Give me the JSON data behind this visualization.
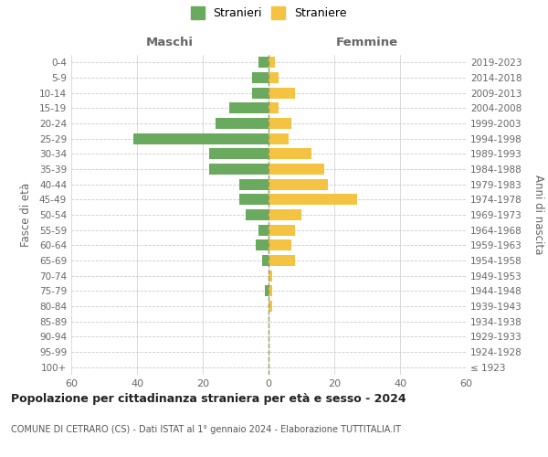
{
  "age_groups": [
    "100+",
    "95-99",
    "90-94",
    "85-89",
    "80-84",
    "75-79",
    "70-74",
    "65-69",
    "60-64",
    "55-59",
    "50-54",
    "45-49",
    "40-44",
    "35-39",
    "30-34",
    "25-29",
    "20-24",
    "15-19",
    "10-14",
    "5-9",
    "0-4"
  ],
  "birth_years": [
    "≤ 1923",
    "1924-1928",
    "1929-1933",
    "1934-1938",
    "1939-1943",
    "1944-1948",
    "1949-1953",
    "1954-1958",
    "1959-1963",
    "1964-1968",
    "1969-1973",
    "1974-1978",
    "1979-1983",
    "1984-1988",
    "1989-1993",
    "1994-1998",
    "1999-2003",
    "2004-2008",
    "2009-2013",
    "2014-2018",
    "2019-2023"
  ],
  "maschi": [
    0,
    0,
    0,
    0,
    0,
    1,
    0,
    2,
    4,
    3,
    7,
    9,
    9,
    18,
    18,
    41,
    16,
    12,
    5,
    5,
    3
  ],
  "femmine": [
    0,
    0,
    0,
    0,
    1,
    1,
    1,
    8,
    7,
    8,
    10,
    27,
    18,
    17,
    13,
    6,
    7,
    3,
    8,
    3,
    2
  ],
  "maschi_color": "#6aaa5e",
  "femmine_color": "#f5c342",
  "dashed_line_color": "#999966",
  "grid_color": "#cccccc",
  "bg_color": "#ffffff",
  "title": "Popolazione per cittadinanza straniera per età e sesso - 2024",
  "subtitle": "COMUNE DI CETRARO (CS) - Dati ISTAT al 1° gennaio 2024 - Elaborazione TUTTITALIA.IT",
  "xlabel_left": "Maschi",
  "xlabel_right": "Femmine",
  "ylabel_left": "Fasce di età",
  "ylabel_right": "Anni di nascita",
  "legend_stranieri": "Stranieri",
  "legend_straniere": "Straniere",
  "xlim": 60,
  "tick_step": 20
}
